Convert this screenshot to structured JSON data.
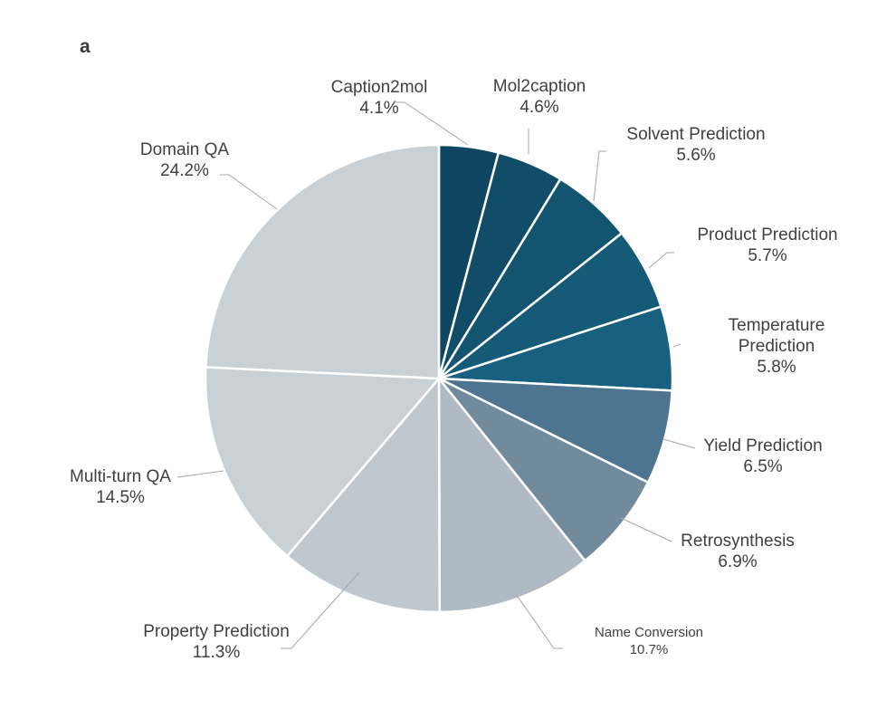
{
  "panel_label": "a",
  "chart_data": {
    "type": "pie",
    "title": "",
    "start_angle_deg": 0,
    "direction": "clockwise",
    "slices": [
      {
        "label_lines": [
          "Caption2mol"
        ],
        "percent_label": "4.1%",
        "value": 4.1,
        "color": "#0e4560"
      },
      {
        "label_lines": [
          "Mol2caption"
        ],
        "percent_label": "4.6%",
        "value": 4.6,
        "color": "#114d68"
      },
      {
        "label_lines": [
          "Solvent Prediction"
        ],
        "percent_label": "5.6%",
        "value": 5.6,
        "color": "#135570"
      },
      {
        "label_lines": [
          "Product Prediction"
        ],
        "percent_label": "5.7%",
        "value": 5.7,
        "color": "#155b78"
      },
      {
        "label_lines": [
          "Temperature",
          "Prediction"
        ],
        "percent_label": "5.8%",
        "value": 5.8,
        "color": "#17607f"
      },
      {
        "label_lines": [
          "Yield Prediction"
        ],
        "percent_label": "6.5%",
        "value": 6.5,
        "color": "#4e758f"
      },
      {
        "label_lines": [
          "Retrosynthesis"
        ],
        "percent_label": "6.9%",
        "value": 6.9,
        "color": "#718b9d"
      },
      {
        "label_lines": [
          "Name Conversion"
        ],
        "percent_label": "10.7%",
        "value": 10.7,
        "color": "#afbac4",
        "small_label": true
      },
      {
        "label_lines": [
          "Property Prediction"
        ],
        "percent_label": "11.3%",
        "value": 11.3,
        "color": "#c0c8cf"
      },
      {
        "label_lines": [
          "Multi-turn QA"
        ],
        "percent_label": "14.5%",
        "value": 14.5,
        "color": "#c9d0d6"
      },
      {
        "label_lines": [
          "Domain QA"
        ],
        "percent_label": "24.2%",
        "value": 24.2,
        "color": "#c9d0d6"
      }
    ]
  }
}
